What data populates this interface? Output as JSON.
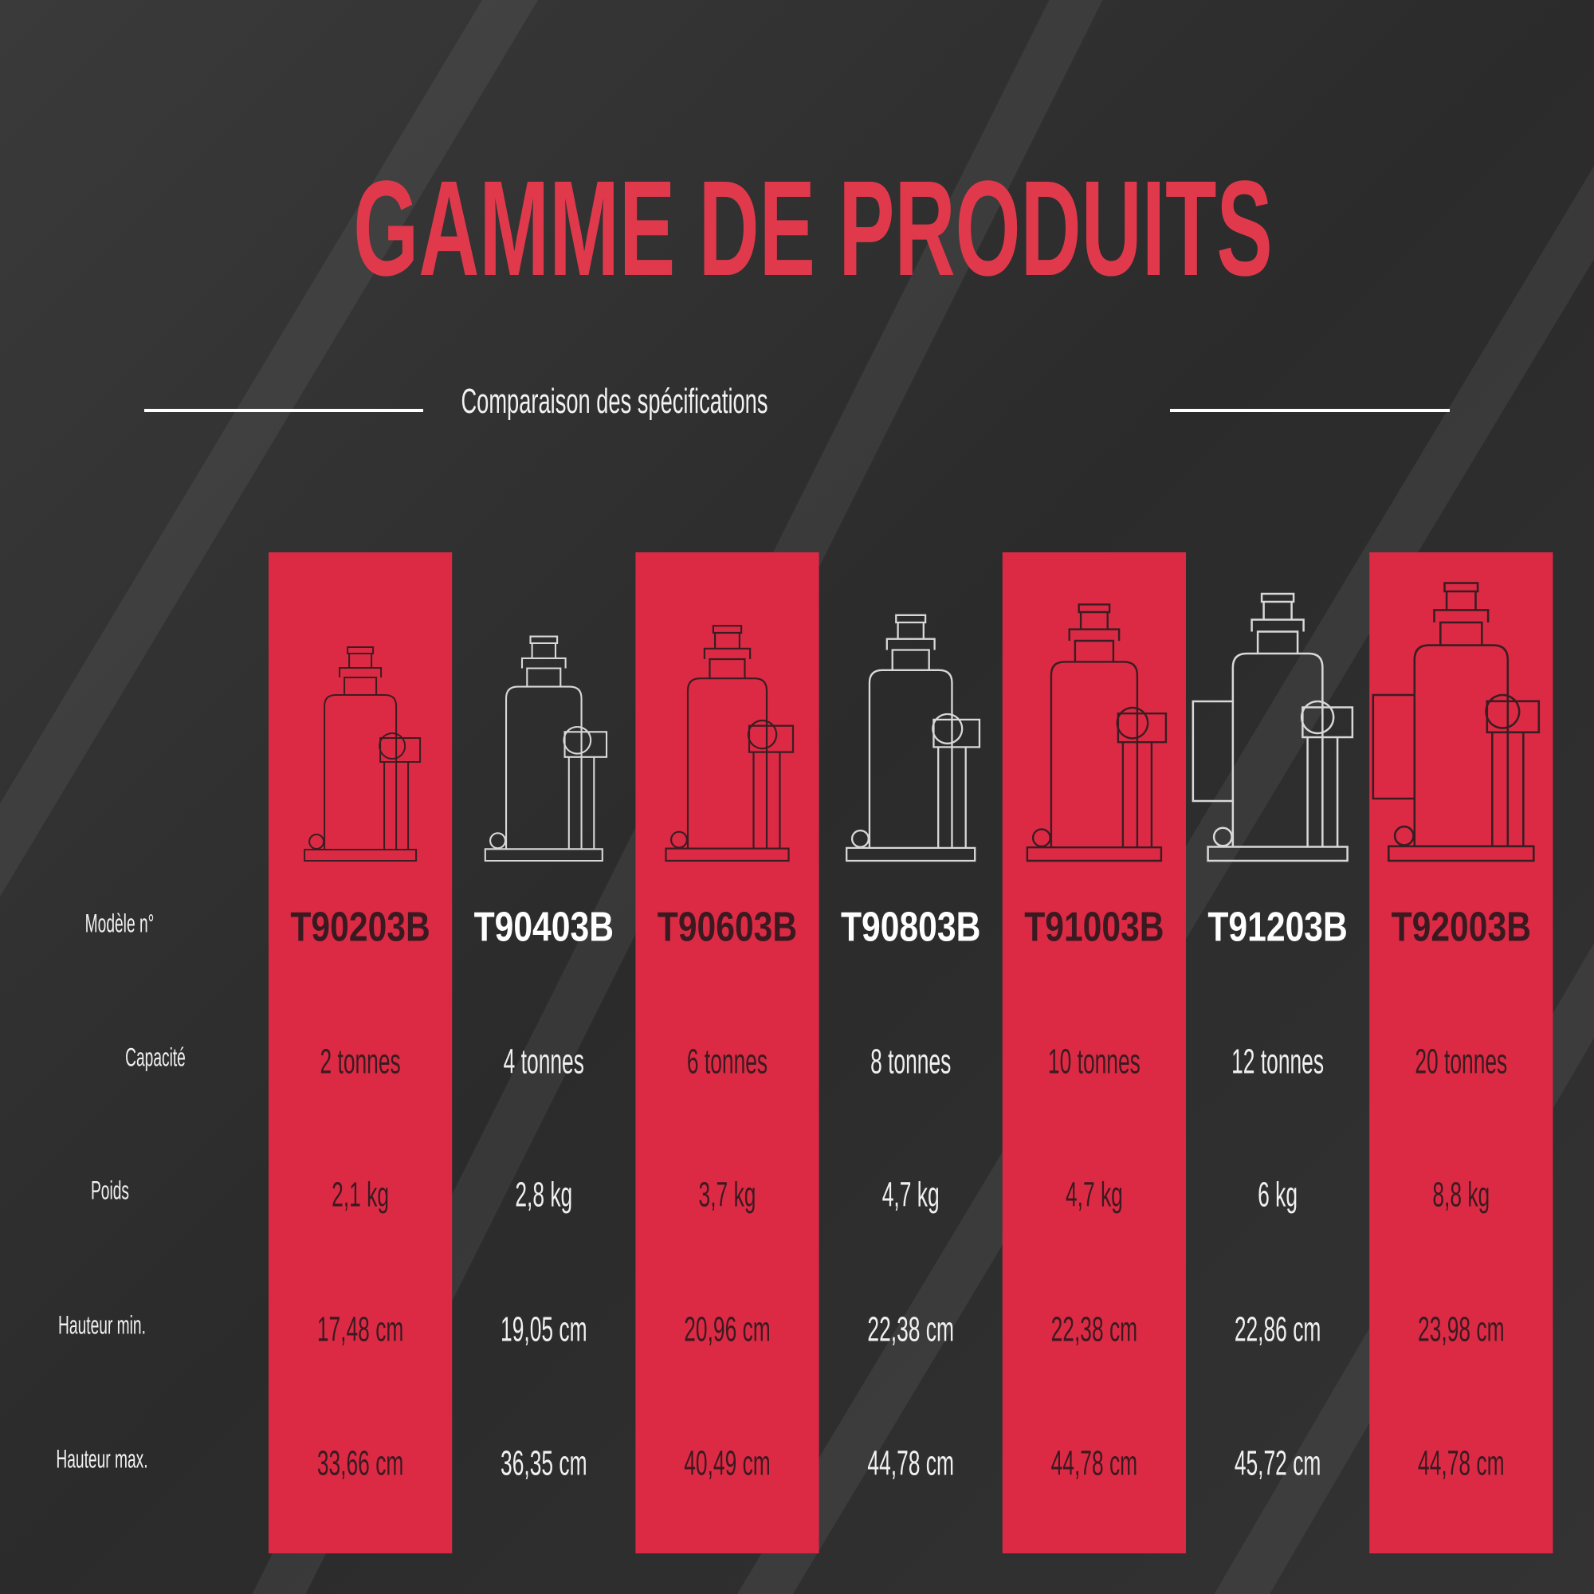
{
  "header": {
    "title": "GAMME DE PRODUITS",
    "subtitle": "Comparaison des spécifications"
  },
  "table": {
    "row_labels": [
      "Modèle n°",
      "Capacité",
      "Poids",
      "Hauteur min.",
      "Hauteur max."
    ],
    "columns": [
      {
        "model": "T90203B",
        "capacity": "2 tonnes",
        "weight": "2,1 kg",
        "min_height": "17,48 cm",
        "max_height": "33,66 cm"
      },
      {
        "model": "T90403B",
        "capacity": "4 tonnes",
        "weight": "2,8 kg",
        "min_height": "19,05 cm",
        "max_height": "36,35 cm"
      },
      {
        "model": "T90603B",
        "capacity": "6 tonnes",
        "weight": "3,7 kg",
        "min_height": "20,96 cm",
        "max_height": "40,49 cm"
      },
      {
        "model": "T90803B",
        "capacity": "8 tonnes",
        "weight": "4,7 kg",
        "min_height": "22,38 cm",
        "max_height": "44,78 cm"
      },
      {
        "model": "T91003B",
        "capacity": "10 tonnes",
        "weight": "4,7 kg",
        "min_height": "22,38 cm",
        "max_height": "44,78 cm"
      },
      {
        "model": "T91203B",
        "capacity": "12 tonnes",
        "weight": "6 kg",
        "min_height": "22,86 cm",
        "max_height": "45,72 cm"
      },
      {
        "model": "T92003B",
        "capacity": "20 tonnes",
        "weight": "8,8 kg",
        "min_height": "23,98 cm",
        "max_height": "44,78 cm"
      }
    ]
  }
}
